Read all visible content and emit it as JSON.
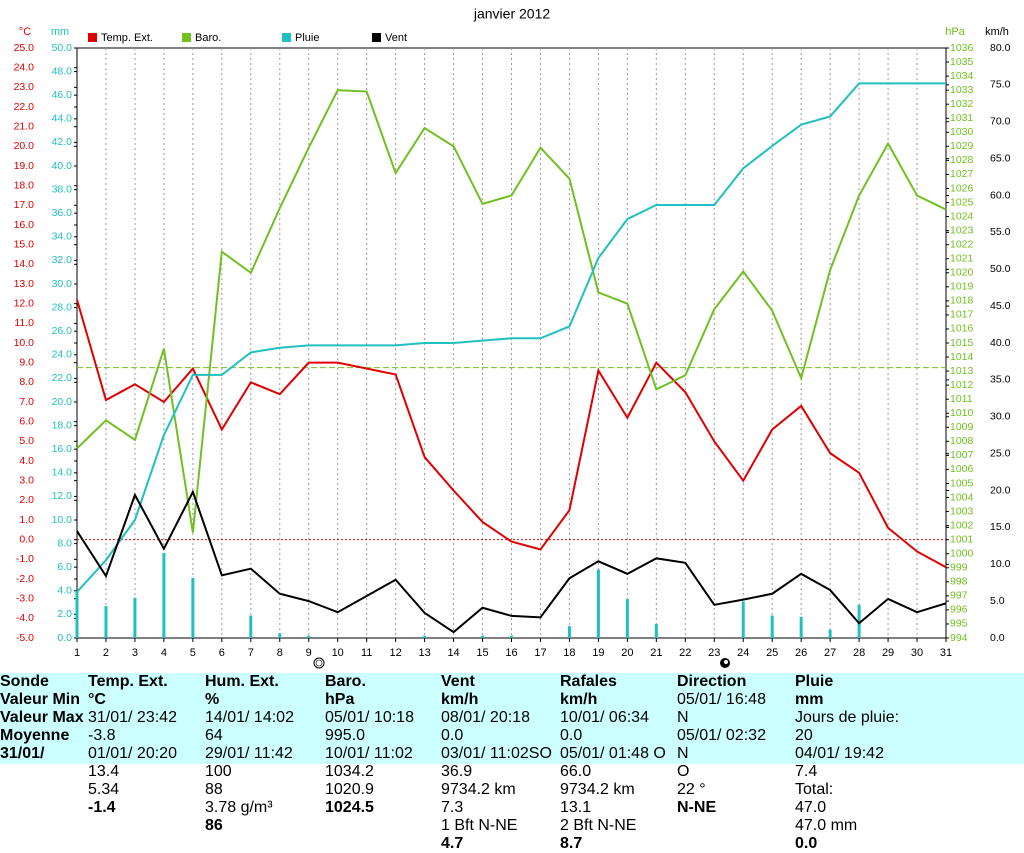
{
  "chart_data": {
    "type": "line",
    "title": "janvier 2012",
    "x": [
      1,
      2,
      3,
      4,
      5,
      6,
      7,
      8,
      9,
      10,
      11,
      12,
      13,
      14,
      15,
      16,
      17,
      18,
      19,
      20,
      21,
      22,
      23,
      24,
      25,
      26,
      27,
      28,
      29,
      30,
      31
    ],
    "xlim": [
      1,
      31
    ],
    "grid": true,
    "axes": [
      {
        "label": "°C",
        "color": "#e00000",
        "side": "left",
        "lim": [
          -5,
          25
        ],
        "ticks": [
          {
            "value": -5,
            "label": "-5.0"
          },
          {
            "value": -4,
            "label": "-4.0"
          },
          {
            "value": -3,
            "label": "-3.0"
          },
          {
            "value": -2,
            "label": "-2.0"
          },
          {
            "value": -1,
            "label": "-1.0"
          },
          {
            "value": 0,
            "label": "0.0"
          },
          {
            "value": 1,
            "label": "1.0"
          },
          {
            "value": 2,
            "label": "2.0"
          },
          {
            "value": 3,
            "label": "3.0"
          },
          {
            "value": 4,
            "label": "4.0"
          },
          {
            "value": 5,
            "label": "5.0"
          },
          {
            "value": 6,
            "label": "6.0"
          },
          {
            "value": 7,
            "label": "7.0"
          },
          {
            "value": 8,
            "label": "8.0"
          },
          {
            "value": 9,
            "label": "9.0"
          },
          {
            "value": 10,
            "label": "10.0"
          },
          {
            "value": 11,
            "label": "11.0"
          },
          {
            "value": 12,
            "label": "12.0"
          },
          {
            "value": 13,
            "label": "13.0"
          },
          {
            "value": 14,
            "label": "14.0"
          },
          {
            "value": 15,
            "label": "15.0"
          },
          {
            "value": 16,
            "label": "16.0"
          },
          {
            "value": 17,
            "label": "17.0"
          },
          {
            "value": 18,
            "label": "18.0"
          },
          {
            "value": 19,
            "label": "19.0"
          },
          {
            "value": 20,
            "label": "20.0"
          },
          {
            "value": 21,
            "label": "21.0"
          },
          {
            "value": 22,
            "label": "22.0"
          },
          {
            "value": 23,
            "label": "23.0"
          },
          {
            "value": 24,
            "label": "24.0"
          },
          {
            "value": 25,
            "label": "25.0"
          }
        ]
      },
      {
        "label": "mm",
        "color": "#20c0c0",
        "side": "left",
        "lim": [
          0,
          50
        ],
        "ticks": [
          {
            "value": 0,
            "label": "0.0"
          },
          {
            "value": 2,
            "label": "2.0"
          },
          {
            "value": 4,
            "label": "4.0"
          },
          {
            "value": 6,
            "label": "6.0"
          },
          {
            "value": 8,
            "label": "8.0"
          },
          {
            "value": 10,
            "label": "10.0"
          },
          {
            "value": 12,
            "label": "12.0"
          },
          {
            "value": 14,
            "label": "14.0"
          },
          {
            "value": 16,
            "label": "16.0"
          },
          {
            "value": 18,
            "label": "18.0"
          },
          {
            "value": 20,
            "label": "20.0"
          },
          {
            "value": 22,
            "label": "22.0"
          },
          {
            "value": 24,
            "label": "24.0"
          },
          {
            "value": 26,
            "label": "26.0"
          },
          {
            "value": 28,
            "label": "28.0"
          },
          {
            "value": 30,
            "label": "30.0"
          },
          {
            "value": 32,
            "label": "32.0"
          },
          {
            "value": 34,
            "label": "34.0"
          },
          {
            "value": 36,
            "label": "36.0"
          },
          {
            "value": 38,
            "label": "38.0"
          },
          {
            "value": 40,
            "label": "40.0"
          },
          {
            "value": 42,
            "label": "42.0"
          },
          {
            "value": 44,
            "label": "44.0"
          },
          {
            "value": 46,
            "label": "46.0"
          },
          {
            "value": 48,
            "label": "48.0"
          },
          {
            "value": 50,
            "label": "50.0"
          }
        ]
      },
      {
        "label": "hPa",
        "color": "#70c020",
        "side": "right",
        "lim": [
          994,
          1036
        ],
        "ticks": [
          994,
          995,
          996,
          997,
          998,
          999,
          1000,
          1001,
          1002,
          1003,
          1004,
          1005,
          1006,
          1007,
          1008,
          1009,
          1010,
          1011,
          1012,
          1013,
          1014,
          1015,
          1016,
          1017,
          1018,
          1019,
          1020,
          1021,
          1022,
          1023,
          1024,
          1025,
          1026,
          1027,
          1028,
          1029,
          1030,
          1031,
          1032,
          1033,
          1034,
          1035,
          1036
        ]
      },
      {
        "label": "km/h",
        "color": "#000000",
        "side": "right",
        "lim": [
          0,
          80
        ],
        "ticks": [
          {
            "value": 0,
            "label": "0.0"
          },
          {
            "value": 5,
            "label": "5.0"
          },
          {
            "value": 10,
            "label": "10.0"
          },
          {
            "value": 15,
            "label": "15.0"
          },
          {
            "value": 20,
            "label": "20.0"
          },
          {
            "value": 25,
            "label": "25.0"
          },
          {
            "value": 30,
            "label": "30.0"
          },
          {
            "value": 35,
            "label": "35.0"
          },
          {
            "value": 40,
            "label": "40.0"
          },
          {
            "value": 45,
            "label": "45.0"
          },
          {
            "value": 50,
            "label": "50.0"
          },
          {
            "value": 55,
            "label": "55.0"
          },
          {
            "value": 60,
            "label": "60.0"
          },
          {
            "value": 65,
            "label": "65.0"
          },
          {
            "value": 70,
            "label": "70.0"
          },
          {
            "value": 75,
            "label": "75.0"
          },
          {
            "value": 80,
            "label": "80.0"
          }
        ]
      }
    ],
    "series": [
      {
        "type": "bar",
        "color": "#20c0c0",
        "axis": 1,
        "values": [
          3.9,
          2.7,
          3.4,
          7.2,
          5.1,
          0,
          1.9,
          0.4,
          0.2,
          0,
          0,
          0,
          0.2,
          0,
          0.2,
          0.2,
          0,
          1.0,
          5.8,
          3.3,
          1.2,
          0,
          0,
          3.1,
          1.9,
          1.8,
          0.7,
          2.8,
          0,
          0,
          0
        ]
      },
      {
        "type": "line",
        "name": "Temp. Ext.",
        "color": "#e00000",
        "axis": 0,
        "values": [
          12.2,
          7.1,
          7.9,
          7.0,
          8.7,
          5.6,
          8.0,
          7.4,
          9.0,
          9.0,
          8.7,
          8.4,
          4.2,
          2.5,
          0.9,
          -0.1,
          -0.5,
          1.5,
          8.6,
          6.2,
          9.0,
          7.5,
          5.0,
          3.0,
          5.6,
          6.8,
          4.4,
          3.4,
          0.6,
          -0.6,
          -1.4
        ]
      },
      {
        "type": "line",
        "name": "Baro.",
        "color": "#70c020",
        "axis": 2,
        "values": [
          1007.5,
          1009.5,
          1008.1,
          1014.6,
          1001.5,
          1021.5,
          1020.0,
          1024.6,
          1028.9,
          1033.0,
          1032.9,
          1027.1,
          1030.3,
          1029.0,
          1024.9,
          1025.5,
          1028.9,
          1026.7,
          1018.6,
          1017.8,
          1011.7,
          1012.7,
          1017.4,
          1020.1,
          1017.3,
          1012.5,
          1020.2,
          1025.5,
          1029.2,
          1025.5,
          1024.5
        ]
      },
      {
        "type": "line",
        "name": "Pluie",
        "color": "#20c0c0",
        "axis": 1,
        "values": [
          3.9,
          6.6,
          10.0,
          17.2,
          22.3,
          22.3,
          24.2,
          24.6,
          24.8,
          24.8,
          24.8,
          24.8,
          25.0,
          25.0,
          25.2,
          25.4,
          25.4,
          26.4,
          32.2,
          35.5,
          36.7,
          36.7,
          36.7,
          39.8,
          41.7,
          43.5,
          44.2,
          47.0,
          47.0,
          47.0,
          47.0
        ]
      },
      {
        "type": "line",
        "name": "Vent",
        "color": "#000000",
        "axis": 3,
        "values": [
          14.5,
          8.4,
          19.4,
          12.1,
          19.8,
          8.5,
          9.4,
          6.0,
          5.0,
          3.5,
          5.7,
          7.9,
          3.4,
          0.8,
          4.1,
          3.0,
          2.8,
          8.1,
          10.4,
          8.7,
          10.8,
          10.2,
          4.5,
          5.2,
          6.0,
          8.7,
          6.5,
          2.0,
          5.3,
          3.5,
          4.7
        ]
      }
    ],
    "reference_lines": [
      {
        "axis": 0,
        "value": 0,
        "color": "#e00000"
      },
      {
        "axis": 2,
        "value": 1013.25,
        "color": "#70c020"
      }
    ]
  },
  "table": {
    "columns": [
      {
        "header": "Sonde",
        "rows": [
          {
            "left": "Valeur Min"
          },
          {
            "left": "Valeur Max"
          },
          {
            "left": "Moyenne"
          },
          {
            "left": "31/01/"
          }
        ]
      },
      {
        "header": "Temp. Ext.",
        "unit": "°C",
        "rows": [
          {
            "left": "31/01/ 23:42",
            "right": "-3.8"
          },
          {
            "left": "01/01/ 20:20",
            "right": "13.4"
          },
          {
            "right": "5.34"
          },
          {
            "right": "-1.4"
          }
        ]
      },
      {
        "header": "Hum. Ext.",
        "unit": "%",
        "rows": [
          {
            "left": "14/01/ 14:02",
            "right": "64"
          },
          {
            "left": "29/01/ 11:42",
            "right": "100"
          },
          {
            "right": "88"
          },
          {
            "left": "3.78 g/m³",
            "right": "86"
          }
        ]
      },
      {
        "header": "Baro.",
        "unit": "hPa",
        "rows": [
          {
            "left": "05/01/ 10:18",
            "right": "995.0"
          },
          {
            "left": "10/01/ 11:02",
            "right": "1034.2"
          },
          {
            "right": "1020.9"
          },
          {
            "right": "1024.5"
          }
        ]
      },
      {
        "header": "Vent",
        "unit": "km/h",
        "rows": [
          {
            "left": "08/01/ 20:18",
            "right": "0.0"
          },
          {
            "left": "03/01/ 11:02SO",
            "right": "36.9"
          },
          {
            "left": "9734.2 km",
            "right": "7.3"
          },
          {
            "left": "1 Bft N-NE",
            "right": "4.7"
          }
        ]
      },
      {
        "header": "Rafales",
        "unit": "km/h",
        "rows": [
          {
            "left": "10/01/ 06:34",
            "right": "0.0"
          },
          {
            "left": "05/01/ 01:48 O",
            "right": "66.0"
          },
          {
            "left": "9734.2 km",
            "right": "13.1"
          },
          {
            "left": "2 Bft N-NE",
            "right": "8.7"
          }
        ]
      },
      {
        "header": "Direction",
        "rows": [
          {
            "left": "05/01/ 16:48",
            "right": "N"
          },
          {
            "left": "05/01/ 02:32",
            "right": "N"
          },
          {
            "right": "O"
          },
          {
            "left": "22 °",
            "right": "N-NE"
          }
        ]
      },
      {
        "header": "Pluie",
        "unit": "mm",
        "rows": [
          {
            "left": "Jours de pluie: 20"
          },
          {
            "left": "04/01/ 19:42",
            "right": "7.4"
          },
          {
            "left": "Total:",
            "right": "47.0"
          },
          {
            "left": "47.0 mm",
            "right": "0.0"
          }
        ]
      }
    ]
  }
}
